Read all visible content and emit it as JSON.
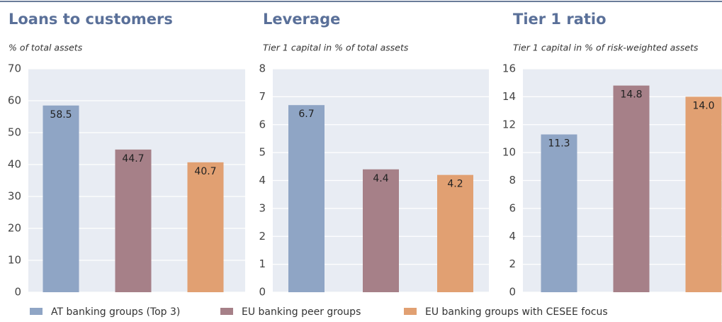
{
  "chart_data": [
    {
      "type": "bar",
      "title": "Loans to customers",
      "subtitle": "% of total assets",
      "values": [
        58.5,
        44.7,
        40.7
      ],
      "value_labels": [
        "58.5",
        "44.7",
        "40.7"
      ],
      "ylim": [
        0,
        70
      ],
      "yticks": [
        0,
        10,
        20,
        30,
        40,
        50,
        60,
        70
      ],
      "grid": true
    },
    {
      "type": "bar",
      "title": "Leverage",
      "subtitle": "Tier 1 capital in % of total assets",
      "values": [
        6.7,
        4.4,
        4.2
      ],
      "value_labels": [
        "6.7",
        "4.4",
        "4.2"
      ],
      "ylim": [
        0,
        8
      ],
      "yticks": [
        0,
        1,
        2,
        3,
        4,
        5,
        6,
        7,
        8
      ],
      "grid": true
    },
    {
      "type": "bar",
      "title": "Tier 1 ratio",
      "subtitle": "Tier 1 capital in % of risk-weighted assets",
      "values": [
        11.3,
        14.8,
        14.0
      ],
      "value_labels": [
        "11.3",
        "14.8",
        "14.0"
      ],
      "ylim": [
        0,
        16
      ],
      "yticks": [
        0,
        2,
        4,
        6,
        8,
        10,
        12,
        14,
        16
      ],
      "grid": true
    }
  ],
  "legend": [
    {
      "name": "AT banking groups (Top 3)",
      "color": "#8fa5c5"
    },
    {
      "name": "EU banking peer groups",
      "color": "#a68088"
    },
    {
      "name": "EU banking groups with CESEE focus",
      "color": "#e1a072"
    }
  ]
}
